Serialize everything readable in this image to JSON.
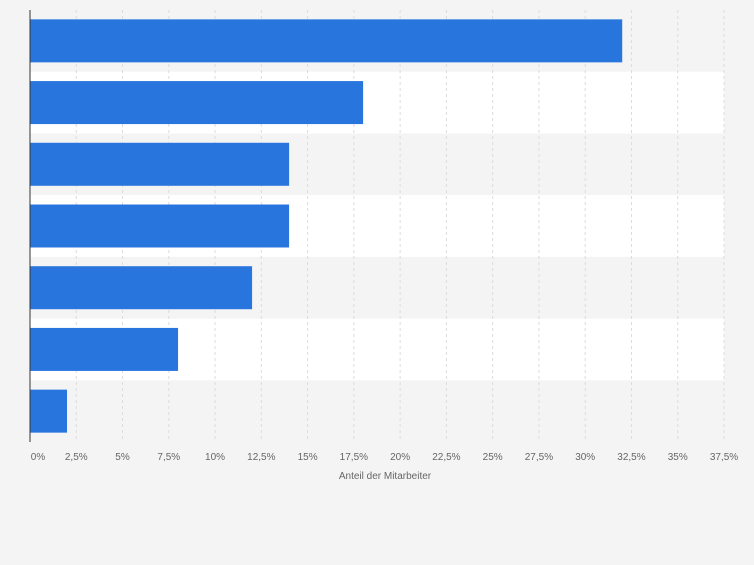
{
  "chart_data": {
    "type": "bar",
    "orientation": "horizontal",
    "categories": [
      "",
      "",
      "",
      "",
      "",
      "",
      ""
    ],
    "values": [
      32,
      18,
      14,
      14,
      12,
      8,
      2
    ],
    "xlabel": "Anteil der Mitarbeiter",
    "xlim": [
      0,
      37.5
    ],
    "ticks": [
      0,
      2.5,
      5,
      7.5,
      10,
      12.5,
      15,
      17.5,
      20,
      22.5,
      25,
      27.5,
      30,
      32.5,
      35,
      37.5
    ],
    "tick_labels": [
      "0%",
      "2,5%",
      "5%",
      "7,5%",
      "10%",
      "12,5%",
      "15%",
      "17,5%",
      "20%",
      "22,5%",
      "25%",
      "27,5%",
      "30%",
      "32,5%",
      "35%",
      "37,5%"
    ],
    "grid": true,
    "bar_color": "#2876dd",
    "stripe_color": "#f4f4f4",
    "plot_background": "#ffffff"
  }
}
